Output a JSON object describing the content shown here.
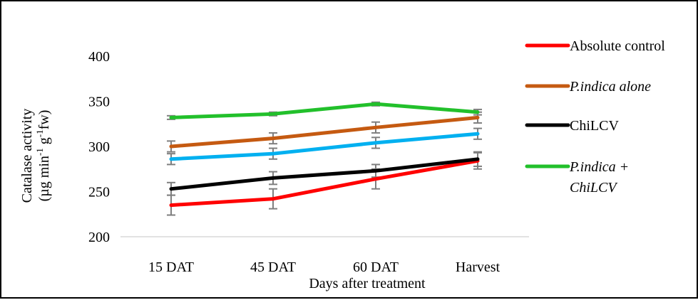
{
  "chart_data": {
    "type": "line",
    "title": "",
    "xlabel": "Days after treatment",
    "ylabel_line1": "Catalase activity",
    "ylabel_line2_parts": [
      "(µg min",
      "-1",
      " g",
      "-1",
      "fw)"
    ],
    "categories": [
      "15 DAT",
      "45 DAT",
      "60 DAT",
      "Harvest"
    ],
    "ylim": [
      200,
      400
    ],
    "yticks": [
      "200",
      "250",
      "300",
      "350",
      "400"
    ],
    "grid": false,
    "legend_position": "right",
    "series": [
      {
        "name": "Absolute control",
        "italic": false,
        "color": "#ff0000",
        "values": [
          235,
          242,
          264,
          284
        ],
        "errors": [
          11,
          11,
          11,
          9
        ]
      },
      {
        "name": "P.indica alone",
        "italic": true,
        "color": "#c55a11",
        "values": [
          300,
          309,
          321,
          332
        ],
        "errors": [
          6,
          6,
          6,
          6
        ]
      },
      {
        "name": "",
        "italic": false,
        "color": "#00b0f0",
        "values": [
          286,
          292,
          304,
          314
        ],
        "errors": [
          6,
          6,
          6,
          6
        ]
      },
      {
        "name": "ChiLCV",
        "italic": false,
        "color": "#000000",
        "values": [
          253,
          265,
          273,
          286
        ],
        "errors": [
          7,
          7,
          7,
          8
        ]
      },
      {
        "name": "P.indica + ChiLCV",
        "name_lines": [
          "P.indica +",
          "ChiLCV"
        ],
        "italic": true,
        "color": "#22c02b",
        "values": [
          332,
          336,
          347,
          338
        ],
        "errors": [
          2,
          2,
          2,
          3
        ]
      }
    ]
  }
}
